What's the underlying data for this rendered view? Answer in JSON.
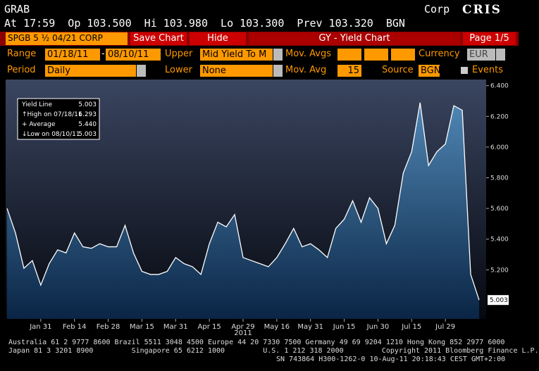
{
  "header": {
    "security": "GRAB",
    "market": "Corp",
    "source": "CRIS",
    "quote": "At 17:59  Op 103.500  Hi 103.980  Lo 103.300  Prev 103.320  BGN"
  },
  "toolbar": {
    "ticker": "SPGB 5 ½ 04/21 CORP",
    "save": "Save Chart",
    "hide": "Hide",
    "function": "GY - Yield Chart",
    "page": "Page 1/5"
  },
  "controls": {
    "range_label": "Range",
    "start": "01/18/11",
    "dash": "-",
    "end": "08/10/11",
    "upper_label": "Upper",
    "upper": "Mid Yield To M",
    "mov_avgs_label": "Mov. Avgs",
    "currency_label": "Currency",
    "currency": "EUR",
    "period_label": "Period",
    "period": "Daily",
    "lower_label": "Lower",
    "lower": "None",
    "mov_avg_label": "Mov. Avg",
    "mov_avg": "15",
    "source_label": "Source",
    "source": "BGN",
    "events": "Events"
  },
  "chart_data": {
    "type": "area",
    "x_label": "2011",
    "color": "#ffffff",
    "categories": [
      null,
      null,
      null,
      null,
      "Jan 31",
      null,
      null,
      null,
      "Feb 14",
      null,
      null,
      null,
      "Feb 28",
      null,
      null,
      null,
      "Mar 15",
      null,
      null,
      null,
      "Mar 31",
      null,
      null,
      null,
      "Apr 15",
      null,
      null,
      null,
      "Apr 29",
      null,
      null,
      null,
      "May 16",
      null,
      null,
      null,
      "May 31",
      null,
      null,
      null,
      "Jun 15",
      null,
      null,
      null,
      "Jun 30",
      null,
      null,
      null,
      "Jul 15",
      null,
      null,
      null,
      "Jul 29",
      null,
      null,
      null,
      null
    ],
    "values": [
      5.6,
      5.44,
      5.21,
      5.26,
      5.1,
      5.24,
      5.33,
      5.31,
      5.44,
      5.35,
      5.34,
      5.37,
      5.35,
      5.35,
      5.49,
      5.31,
      5.19,
      5.17,
      5.17,
      5.19,
      5.28,
      5.24,
      5.22,
      5.17,
      5.37,
      5.51,
      5.48,
      5.56,
      5.28,
      5.26,
      5.24,
      5.22,
      5.28,
      5.37,
      5.47,
      5.35,
      5.37,
      5.33,
      5.28,
      5.47,
      5.53,
      5.65,
      5.51,
      5.67,
      5.6,
      5.37,
      5.49,
      5.83,
      5.97,
      6.29,
      5.88,
      5.97,
      6.02,
      6.27,
      6.24,
      5.17,
      5.003
    ],
    "ylim": [
      4.88,
      6.44
    ],
    "yticks": [
      {
        "value": 5.2,
        "label": "5.200"
      },
      {
        "value": 5.4,
        "label": "5.400"
      },
      {
        "value": 5.6,
        "label": "5.600"
      },
      {
        "value": 5.8,
        "label": "5.800"
      },
      {
        "value": 6.0,
        "label": "6.000"
      },
      {
        "value": 6.2,
        "label": "6.200"
      },
      {
        "value": 6.4,
        "label": "6.400"
      }
    ],
    "last_label": "5.003",
    "legend": [
      {
        "name": "Yield Line",
        "value": "5.003"
      },
      {
        "name": "↑High on 07/18/11",
        "value": "6.293"
      },
      {
        "name": "+ Average",
        "value": "5.440"
      },
      {
        "name": "↓Low on 08/10/11",
        "value": "5.003"
      }
    ]
  },
  "footer": [
    "Australia 61 2 9777 8600 Brazil 5511 3048 4500 Europe 44 20 7330 7500 Germany 49 69 9204 1210 Hong Kong 852 2977 6000",
    "Japan 81 3 3201 8900         Singapore 65 6212 1000         U.S. 1 212 318 2000         Copyright 2011 Bloomberg Finance L.P.",
    "SN 743864 H300-1262-0 10-Aug-11 20:18:43 CEST GMT+2:00"
  ]
}
